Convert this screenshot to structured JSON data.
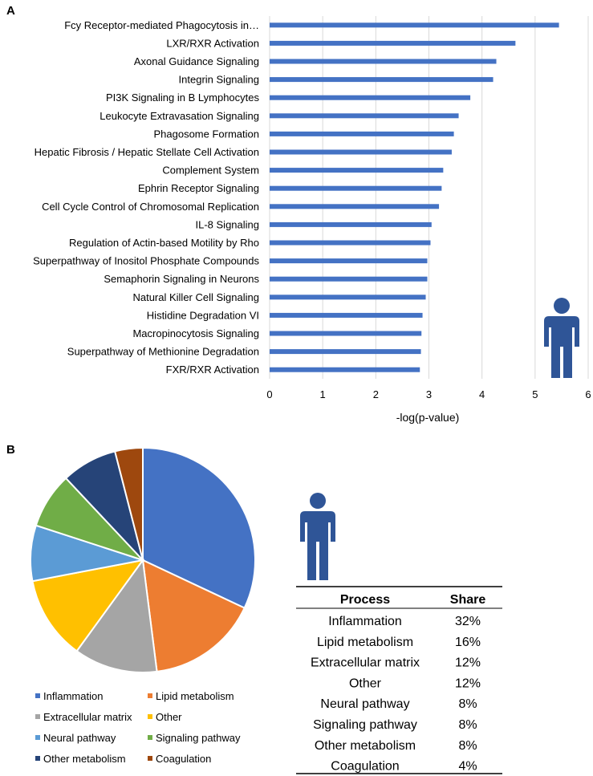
{
  "panel_a_label": "A",
  "panel_b_label": "B",
  "human_icon_name": "human-figure-icon",
  "chart_data": [
    {
      "type": "bar",
      "orientation": "horizontal",
      "title": "",
      "xlabel": "-log(p-value)",
      "ylabel": "",
      "xlim": [
        0,
        6
      ],
      "xticks": [
        0,
        1,
        2,
        3,
        4,
        5,
        6
      ],
      "grid": true,
      "bar_color": "#4472C4",
      "categories": [
        "Fcy Receptor-mediated Phagocytosis in…",
        "LXR/RXR Activation",
        "Axonal Guidance Signaling",
        "Integrin Signaling",
        "PI3K Signaling in B Lymphocytes",
        "Leukocyte Extravasation Signaling",
        "Phagosome Formation",
        "Hepatic Fibrosis / Hepatic Stellate Cell Activation",
        "Complement System",
        "Ephrin Receptor Signaling",
        "Cell Cycle Control of Chromosomal Replication",
        "IL-8 Signaling",
        "Regulation of Actin-based Motility by Rho",
        "Superpathway of Inositol Phosphate Compounds",
        "Semaphorin Signaling in Neurons",
        "Natural Killer Cell Signaling",
        "Histidine Degradation VI",
        "Macropinocytosis Signaling",
        "Superpathway of Methionine Degradation",
        "FXR/RXR Activation"
      ],
      "values": [
        5.45,
        4.63,
        4.27,
        4.21,
        3.78,
        3.56,
        3.47,
        3.43,
        3.27,
        3.24,
        3.19,
        3.05,
        3.03,
        2.97,
        2.97,
        2.94,
        2.88,
        2.86,
        2.85,
        2.83
      ]
    },
    {
      "type": "pie",
      "title": "",
      "legend_position": "bottom",
      "slices": [
        {
          "label": "Inflammation",
          "value": 32,
          "color": "#4472C4"
        },
        {
          "label": "Lipid metabolism",
          "value": 16,
          "color": "#ED7D31"
        },
        {
          "label": "Extracellular matrix",
          "value": 12,
          "color": "#A5A5A5"
        },
        {
          "label": "Other",
          "value": 12,
          "color": "#FFC000"
        },
        {
          "label": "Neural pathway",
          "value": 8,
          "color": "#5B9BD5"
        },
        {
          "label": "Signaling pathway",
          "value": 8,
          "color": "#70AD47"
        },
        {
          "label": "Other metabolism",
          "value": 8,
          "color": "#264478"
        },
        {
          "label": "Coagulation",
          "value": 4,
          "color": "#9E480E"
        }
      ]
    }
  ],
  "table": {
    "headers": [
      "Process",
      "Share"
    ],
    "rows": [
      [
        "Inflammation",
        "32%"
      ],
      [
        "Lipid metabolism",
        "16%"
      ],
      [
        "Extracellular matrix",
        "12%"
      ],
      [
        "Other",
        "12%"
      ],
      [
        "Neural pathway",
        "8%"
      ],
      [
        "Signaling pathway",
        "8%"
      ],
      [
        "Other metabolism",
        "8%"
      ],
      [
        "Coagulation",
        "4%"
      ]
    ]
  },
  "colors": {
    "figure_icon": "#2F5597",
    "grid": "#D9D9D9"
  }
}
